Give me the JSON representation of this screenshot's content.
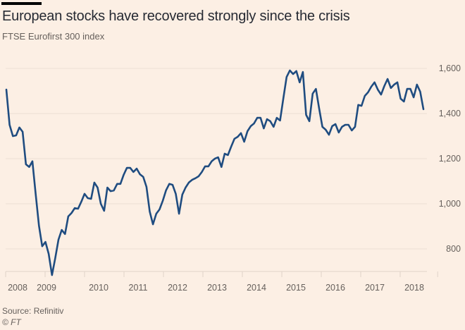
{
  "header": {
    "title": "European stocks have recovered strongly since the crisis",
    "subtitle": "FTSE Eurofirst 300 index"
  },
  "footer": {
    "source": "Source: Refinitiv",
    "copyright": "© FT"
  },
  "colors": {
    "background": "#fcefe4",
    "line": "#1f4c80",
    "grid": "#ebdfd5",
    "text": "#66605c"
  },
  "chart_data": {
    "type": "line",
    "title": "European stocks have recovered strongly since the crisis",
    "subtitle": "FTSE Eurofirst 300 index",
    "xlabel": "",
    "ylabel": "",
    "ylim": [
      700,
      1650
    ],
    "xlim": [
      2008.0,
      2018.95
    ],
    "grid": true,
    "y_axis_side": "right",
    "y_ticks": [
      800,
      1000,
      1200,
      1400,
      1600
    ],
    "y_tick_labels": [
      "800",
      "1,000",
      "1,200",
      "1,400",
      "1,600"
    ],
    "x_ticks": [
      2008,
      2009,
      2010,
      2011,
      2012,
      2013,
      2014,
      2015,
      2016,
      2017,
      2018
    ],
    "x_tick_labels": [
      "2008",
      "2009",
      "2010",
      "2011",
      "2012",
      "2013",
      "2014",
      "2015",
      "2016",
      "2017",
      "2018"
    ],
    "series": [
      {
        "name": "FTSE Eurofirst 300",
        "start": 2008.0,
        "step_years": 0.0833,
        "values": [
          1506,
          1350,
          1300,
          1303,
          1338,
          1319,
          1175,
          1163,
          1188,
          1044,
          903,
          812,
          831,
          778,
          684,
          759,
          841,
          884,
          866,
          944,
          959,
          981,
          978,
          1009,
          1044,
          1025,
          1022,
          1094,
          1072,
          1000,
          969,
          1072,
          1056,
          1059,
          1088,
          1088,
          1128,
          1159,
          1159,
          1141,
          1156,
          1131,
          1119,
          1075,
          966,
          909,
          956,
          975,
          1013,
          1059,
          1088,
          1084,
          1044,
          956,
          1041,
          1072,
          1094,
          1106,
          1113,
          1122,
          1141,
          1166,
          1166,
          1188,
          1200,
          1206,
          1163,
          1222,
          1216,
          1253,
          1288,
          1297,
          1313,
          1275,
          1322,
          1344,
          1356,
          1381,
          1381,
          1334,
          1375,
          1366,
          1341,
          1381,
          1369,
          1466,
          1562,
          1591,
          1575,
          1588,
          1538,
          1584,
          1394,
          1366,
          1488,
          1509,
          1422,
          1341,
          1328,
          1306,
          1344,
          1353,
          1316,
          1341,
          1350,
          1350,
          1325,
          1341,
          1438,
          1434,
          1478,
          1494,
          1519,
          1538,
          1506,
          1484,
          1522,
          1553,
          1513,
          1528,
          1538,
          1466,
          1453,
          1509,
          1509,
          1472,
          1528,
          1497,
          1419
        ]
      }
    ]
  }
}
